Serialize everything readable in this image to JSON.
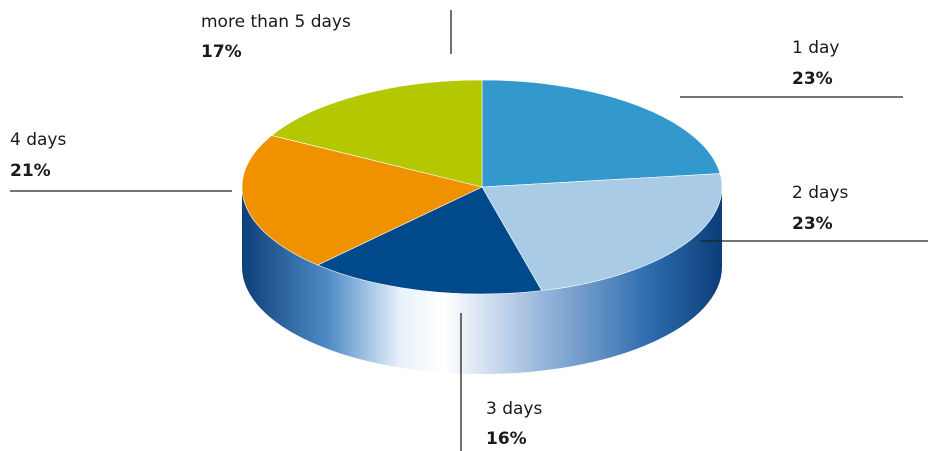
{
  "chart_data": {
    "type": "pie",
    "style": "3d",
    "categories": [
      "1 day",
      "2 days",
      "3 days",
      "4 days",
      "more than 5 days"
    ],
    "values": [
      23,
      23,
      16,
      21,
      17
    ],
    "value_labels": [
      "23%",
      "23%",
      "16%",
      "21%",
      "17%"
    ],
    "unit": "%",
    "colors": [
      "#3399cc",
      "#a9cbe6",
      "#004a8c",
      "#f09200",
      "#b4c800"
    ],
    "legend": "none"
  }
}
